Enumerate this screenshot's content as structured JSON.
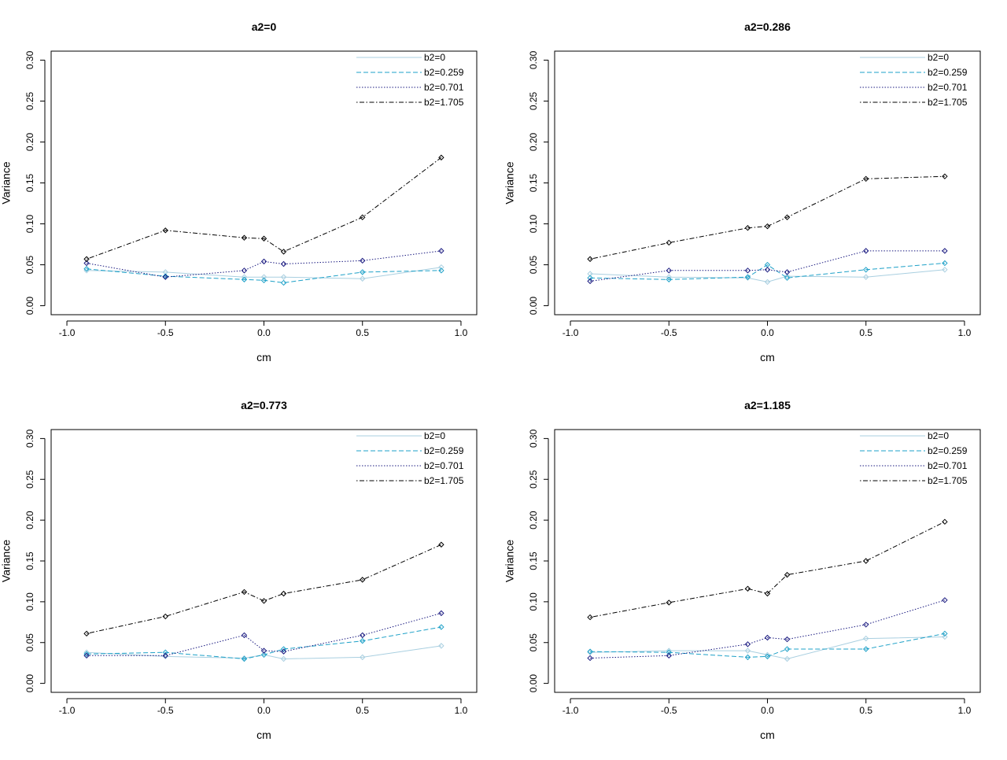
{
  "colors": {
    "background": "#ffffff",
    "axis": "#000000",
    "series": [
      "#a9cfe0",
      "#1ea1c8",
      "#1a1a80",
      "#000000"
    ]
  },
  "chart_data": [
    {
      "type": "line",
      "title": "a2=0",
      "xlabel": "cm",
      "ylabel": "Variance",
      "xlim": [
        -1.0,
        1.0
      ],
      "ylim": [
        0.0,
        0.3
      ],
      "x_ticks": [
        "-1.0",
        "-0.5",
        "0.0",
        "0.5",
        "1.0"
      ],
      "y_ticks": [
        "0.00",
        "0.05",
        "0.10",
        "0.15",
        "0.20",
        "0.25",
        "0.30"
      ],
      "grid": false,
      "legend_position": "top-right",
      "x": [
        -0.9,
        -0.5,
        -0.1,
        0.0,
        0.1,
        0.5,
        0.9
      ],
      "series": [
        {
          "name": "b2=0",
          "line_style": "solid",
          "values": [
            0.043,
            0.041,
            0.035,
            0.035,
            0.035,
            0.033,
            0.047
          ]
        },
        {
          "name": "b2=0.259",
          "line_style": "dashed",
          "values": [
            0.045,
            0.036,
            0.032,
            0.031,
            0.028,
            0.041,
            0.043
          ]
        },
        {
          "name": "b2=0.701",
          "line_style": "dotted",
          "values": [
            0.052,
            0.035,
            0.043,
            0.054,
            0.051,
            0.055,
            0.067
          ]
        },
        {
          "name": "b2=1.705",
          "line_style": "dotdash",
          "values": [
            0.057,
            0.092,
            0.083,
            0.082,
            0.066,
            0.108,
            0.181
          ]
        }
      ]
    },
    {
      "type": "line",
      "title": "a2=0.286",
      "xlabel": "cm",
      "ylabel": "Variance",
      "xlim": [
        -1.0,
        1.0
      ],
      "ylim": [
        0.0,
        0.3
      ],
      "x_ticks": [
        "-1.0",
        "-0.5",
        "0.0",
        "0.5",
        "1.0"
      ],
      "y_ticks": [
        "0.00",
        "0.05",
        "0.10",
        "0.15",
        "0.20",
        "0.25",
        "0.30"
      ],
      "grid": false,
      "legend_position": "top-right",
      "x": [
        -0.9,
        -0.5,
        -0.1,
        0.0,
        0.1,
        0.5,
        0.9
      ],
      "series": [
        {
          "name": "b2=0",
          "line_style": "solid",
          "values": [
            0.039,
            0.035,
            0.034,
            0.029,
            0.036,
            0.035,
            0.044
          ]
        },
        {
          "name": "b2=0.259",
          "line_style": "dashed",
          "values": [
            0.034,
            0.032,
            0.035,
            0.05,
            0.034,
            0.044,
            0.052
          ]
        },
        {
          "name": "b2=0.701",
          "line_style": "dotted",
          "values": [
            0.03,
            0.043,
            0.043,
            0.044,
            0.041,
            0.067,
            0.067
          ]
        },
        {
          "name": "b2=1.705",
          "line_style": "dotdash",
          "values": [
            0.057,
            0.077,
            0.095,
            0.097,
            0.108,
            0.155,
            0.158
          ]
        }
      ]
    },
    {
      "type": "line",
      "title": "a2=0.773",
      "xlabel": "cm",
      "ylabel": "Variance",
      "xlim": [
        -1.0,
        1.0
      ],
      "ylim": [
        0.0,
        0.3
      ],
      "x_ticks": [
        "-1.0",
        "-0.5",
        "0.0",
        "0.5",
        "1.0"
      ],
      "y_ticks": [
        "0.00",
        "0.05",
        "0.10",
        "0.15",
        "0.20",
        "0.25",
        "0.30"
      ],
      "grid": false,
      "legend_position": "top-right",
      "x": [
        -0.9,
        -0.5,
        -0.1,
        0.0,
        0.1,
        0.5,
        0.9
      ],
      "series": [
        {
          "name": "b2=0",
          "line_style": "solid",
          "values": [
            0.038,
            0.033,
            0.031,
            0.035,
            0.03,
            0.032,
            0.046
          ]
        },
        {
          "name": "b2=0.259",
          "line_style": "dashed",
          "values": [
            0.036,
            0.038,
            0.03,
            0.035,
            0.042,
            0.052,
            0.069
          ]
        },
        {
          "name": "b2=0.701",
          "line_style": "dotted",
          "values": [
            0.034,
            0.034,
            0.059,
            0.04,
            0.039,
            0.059,
            0.086
          ]
        },
        {
          "name": "b2=1.705",
          "line_style": "dotdash",
          "values": [
            0.061,
            0.082,
            0.112,
            0.101,
            0.11,
            0.127,
            0.17
          ]
        }
      ]
    },
    {
      "type": "line",
      "title": "a2=1.185",
      "xlabel": "cm",
      "ylabel": "Variance",
      "xlim": [
        -1.0,
        1.0
      ],
      "ylim": [
        0.0,
        0.3
      ],
      "x_ticks": [
        "-1.0",
        "-0.5",
        "0.0",
        "0.5",
        "1.0"
      ],
      "y_ticks": [
        "0.00",
        "0.05",
        "0.10",
        "0.15",
        "0.20",
        "0.25",
        "0.30"
      ],
      "grid": false,
      "legend_position": "top-right",
      "x": [
        -0.9,
        -0.5,
        -0.1,
        0.0,
        0.1,
        0.5,
        0.9
      ],
      "series": [
        {
          "name": "b2=0",
          "line_style": "solid",
          "values": [
            0.038,
            0.04,
            0.04,
            0.035,
            0.03,
            0.055,
            0.057
          ]
        },
        {
          "name": "b2=0.259",
          "line_style": "dashed",
          "values": [
            0.039,
            0.038,
            0.032,
            0.033,
            0.042,
            0.042,
            0.061
          ]
        },
        {
          "name": "b2=0.701",
          "line_style": "dotted",
          "values": [
            0.031,
            0.034,
            0.048,
            0.056,
            0.054,
            0.072,
            0.102
          ]
        },
        {
          "name": "b2=1.705",
          "line_style": "dotdash",
          "values": [
            0.081,
            0.099,
            0.116,
            0.11,
            0.133,
            0.15,
            0.198
          ]
        }
      ]
    }
  ]
}
